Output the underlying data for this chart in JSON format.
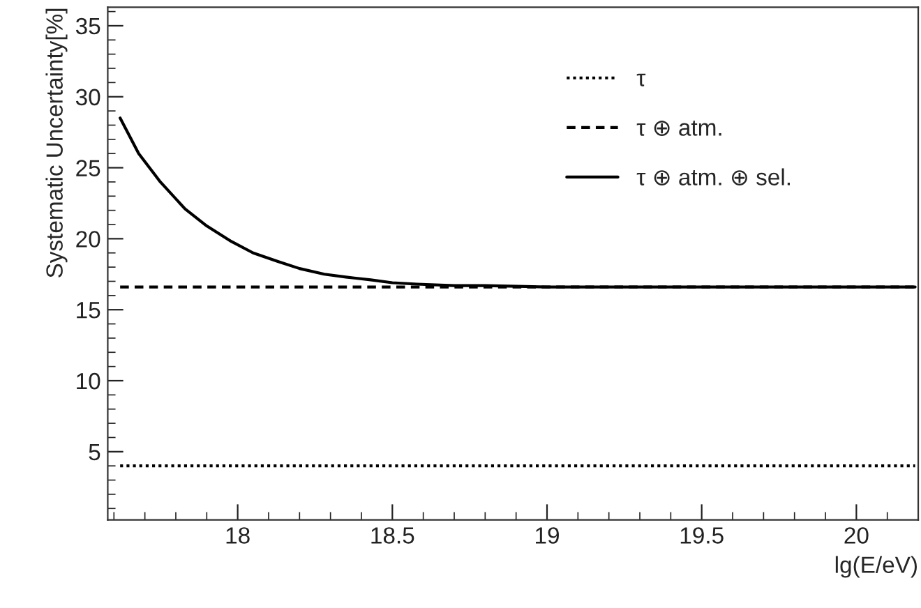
{
  "chart_data": {
    "type": "line",
    "xlabel": "lg(E/eV)",
    "ylabel": "Systematic Uncertainty[%]",
    "xlim": [
      17.58,
      20.2
    ],
    "ylim": [
      0.2,
      36.3
    ],
    "xticks": [
      18,
      18.5,
      19,
      19.5,
      20
    ],
    "yticks": [
      5,
      10,
      15,
      20,
      25,
      30,
      35
    ],
    "grid": false,
    "legend": "top right",
    "series": [
      {
        "name": "τ",
        "color": "#000000",
        "line_style": "dotted",
        "x": [
          17.62,
          20.19
        ],
        "values": [
          4.0,
          4.0
        ]
      },
      {
        "name": "τ ⊕ atm.",
        "color": "#000000",
        "line_style": "dashed",
        "x": [
          17.62,
          20.19
        ],
        "values": [
          16.6,
          16.6
        ]
      },
      {
        "name": "τ ⊕ atm. ⊕ sel.",
        "color": "#000000",
        "line_style": "solid",
        "x": [
          17.62,
          17.68,
          17.75,
          17.83,
          17.9,
          17.98,
          18.05,
          18.13,
          18.2,
          18.28,
          18.35,
          18.43,
          18.5,
          18.58,
          18.7,
          18.8,
          19.0,
          19.2,
          19.5,
          20.19
        ],
        "values": [
          28.5,
          26.0,
          24.0,
          22.1,
          20.9,
          19.8,
          19.0,
          18.4,
          17.9,
          17.5,
          17.3,
          17.1,
          16.9,
          16.8,
          16.7,
          16.7,
          16.6,
          16.6,
          16.6,
          16.6
        ]
      }
    ]
  }
}
